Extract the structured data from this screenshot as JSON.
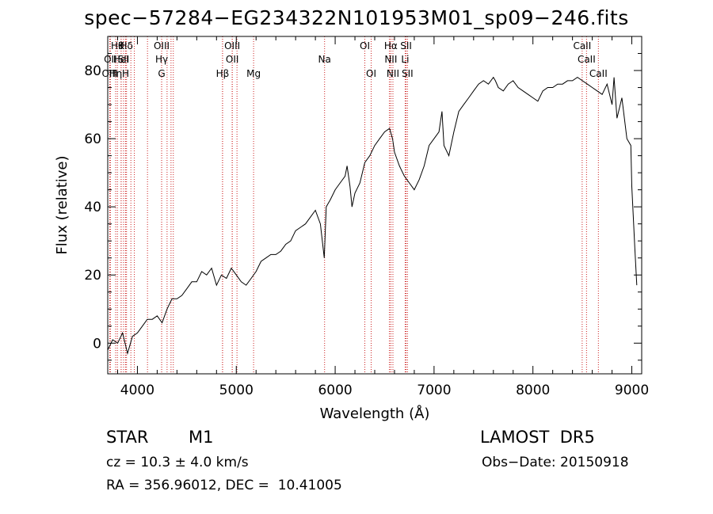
{
  "chart_data": {
    "type": "line",
    "title": "spec−57284−EG234322N101953M01_sp09−246.fits",
    "xlabel": "Wavelength (Å)",
    "ylabel": "Flux (relative)",
    "xlim": [
      3700,
      9100
    ],
    "ylim": [
      -9,
      90
    ],
    "xticks": [
      4000,
      5000,
      6000,
      7000,
      8000,
      9000
    ],
    "yticks": [
      0,
      20,
      40,
      60,
      80
    ],
    "grid": false,
    "line_color": "#000000",
    "marker_color": "#cc2222",
    "series": [
      {
        "x": [
          3700,
          3750,
          3800,
          3850,
          3900,
          3950,
          4000,
          4050,
          4100,
          4150,
          4200,
          4250,
          4300,
          4350,
          4400,
          4450,
          4500,
          4550,
          4600,
          4650,
          4700,
          4750,
          4800,
          4850,
          4900,
          4950,
          5000,
          5050,
          5100,
          5150,
          5200,
          5250,
          5300,
          5350,
          5400,
          5450,
          5500,
          5550,
          5600,
          5650,
          5700,
          5750,
          5800,
          5850,
          5890,
          5910,
          5930,
          5950,
          6000,
          6050,
          6100,
          6120,
          6150,
          6170,
          6200,
          6250,
          6300,
          6350,
          6400,
          6450,
          6500,
          6550,
          6580,
          6600,
          6650,
          6700,
          6750,
          6800,
          6850,
          6900,
          6950,
          7000,
          7050,
          7080,
          7100,
          7150,
          7200,
          7250,
          7300,
          7350,
          7400,
          7450,
          7500,
          7550,
          7600,
          7620,
          7650,
          7700,
          7750,
          7800,
          7850,
          7900,
          7950,
          8000,
          8050,
          8100,
          8150,
          8200,
          8250,
          8300,
          8350,
          8400,
          8450,
          8500,
          8550,
          8600,
          8650,
          8700,
          8750,
          8800,
          8820,
          8850,
          8900,
          8950,
          8990,
          9000,
          9030,
          9050
        ],
        "y": [
          -2,
          1,
          0,
          3,
          -3,
          2,
          3,
          5,
          7,
          7,
          8,
          6,
          10,
          13,
          13,
          14,
          16,
          18,
          18,
          21,
          20,
          22,
          17,
          20,
          19,
          22,
          20,
          18,
          17,
          19,
          21,
          24,
          25,
          26,
          26,
          27,
          29,
          30,
          33,
          34,
          35,
          37,
          39,
          35,
          25,
          40,
          41,
          42,
          45,
          47,
          49,
          52,
          46,
          40,
          44,
          47,
          53,
          55,
          58,
          60,
          62,
          63,
          60,
          56,
          52,
          49,
          47,
          45,
          48,
          52,
          58,
          60,
          62,
          68,
          58,
          55,
          62,
          68,
          70,
          72,
          74,
          76,
          77,
          76,
          78,
          77,
          75,
          74,
          76,
          77,
          75,
          74,
          73,
          72,
          71,
          74,
          75,
          75,
          76,
          76,
          77,
          77,
          78,
          77,
          76,
          75,
          74,
          73,
          76,
          70,
          78,
          66,
          72,
          60,
          58,
          46,
          28,
          17
        ]
      }
    ],
    "line_markers": [
      {
        "x": 3798,
        "label": "Hθ",
        "row": 1
      },
      {
        "x": 3836,
        "label": "K",
        "row": 1
      },
      {
        "x": 3890,
        "label": "Hδ",
        "row": 1
      },
      {
        "x": 3727,
        "label": "OII",
        "row": 2
      },
      {
        "x": 3835,
        "label": "HeI",
        "row": 2
      },
      {
        "x": 3860,
        "label": "SII",
        "row": 2
      },
      {
        "x": 3720,
        "label": "OIII",
        "row": 3
      },
      {
        "x": 3780,
        "label": "Hη",
        "row": 3
      },
      {
        "x": 3880,
        "label": "H",
        "row": 3
      },
      {
        "x": 3934,
        "label": "",
        "row": 0
      },
      {
        "x": 3969,
        "label": "",
        "row": 0
      },
      {
        "x": 4102,
        "label": "",
        "row": 0
      },
      {
        "x": 4245,
        "label": "OIII",
        "row": 1
      },
      {
        "x": 4245,
        "label": "Hγ",
        "row": 2
      },
      {
        "x": 4245,
        "label": "G",
        "row": 3
      },
      {
        "x": 4300,
        "label": "",
        "row": 0
      },
      {
        "x": 4340,
        "label": "",
        "row": 0
      },
      {
        "x": 4363,
        "label": "",
        "row": 0
      },
      {
        "x": 4861,
        "label": "",
        "row": 0
      },
      {
        "x": 4959,
        "label": "OIII",
        "row": 1
      },
      {
        "x": 4959,
        "label": "OII",
        "row": 2
      },
      {
        "x": 4861,
        "label": "Hβ",
        "row": 3
      },
      {
        "x": 5007,
        "label": "",
        "row": 0
      },
      {
        "x": 5175,
        "label": "Mg",
        "row": 3
      },
      {
        "x": 5893,
        "label": "Na",
        "row": 2
      },
      {
        "x": 6300,
        "label": "OI",
        "row": 1
      },
      {
        "x": 6364,
        "label": "OI",
        "row": 3
      },
      {
        "x": 6563,
        "label": "Hα",
        "row": 1
      },
      {
        "x": 6563,
        "label": "NII",
        "row": 2
      },
      {
        "x": 6584,
        "label": "NII",
        "row": 3
      },
      {
        "x": 6548,
        "label": "",
        "row": 0
      },
      {
        "x": 6717,
        "label": "SII",
        "row": 1
      },
      {
        "x": 6708,
        "label": "Li",
        "row": 2
      },
      {
        "x": 6731,
        "label": "SII",
        "row": 3
      },
      {
        "x": 8498,
        "label": "CaII",
        "row": 1
      },
      {
        "x": 8542,
        "label": "CaII",
        "row": 2
      },
      {
        "x": 8662,
        "label": "CaII",
        "row": 3
      }
    ]
  },
  "footer": {
    "class_label": "STAR",
    "subclass": "M1",
    "survey": "LAMOST  DR5",
    "cz": "cz = 10.3 ± 4.0 km/s",
    "obs_date": "Obs−Date: 20150918",
    "coords": "RA = 356.96012, DEC =  10.41005"
  }
}
